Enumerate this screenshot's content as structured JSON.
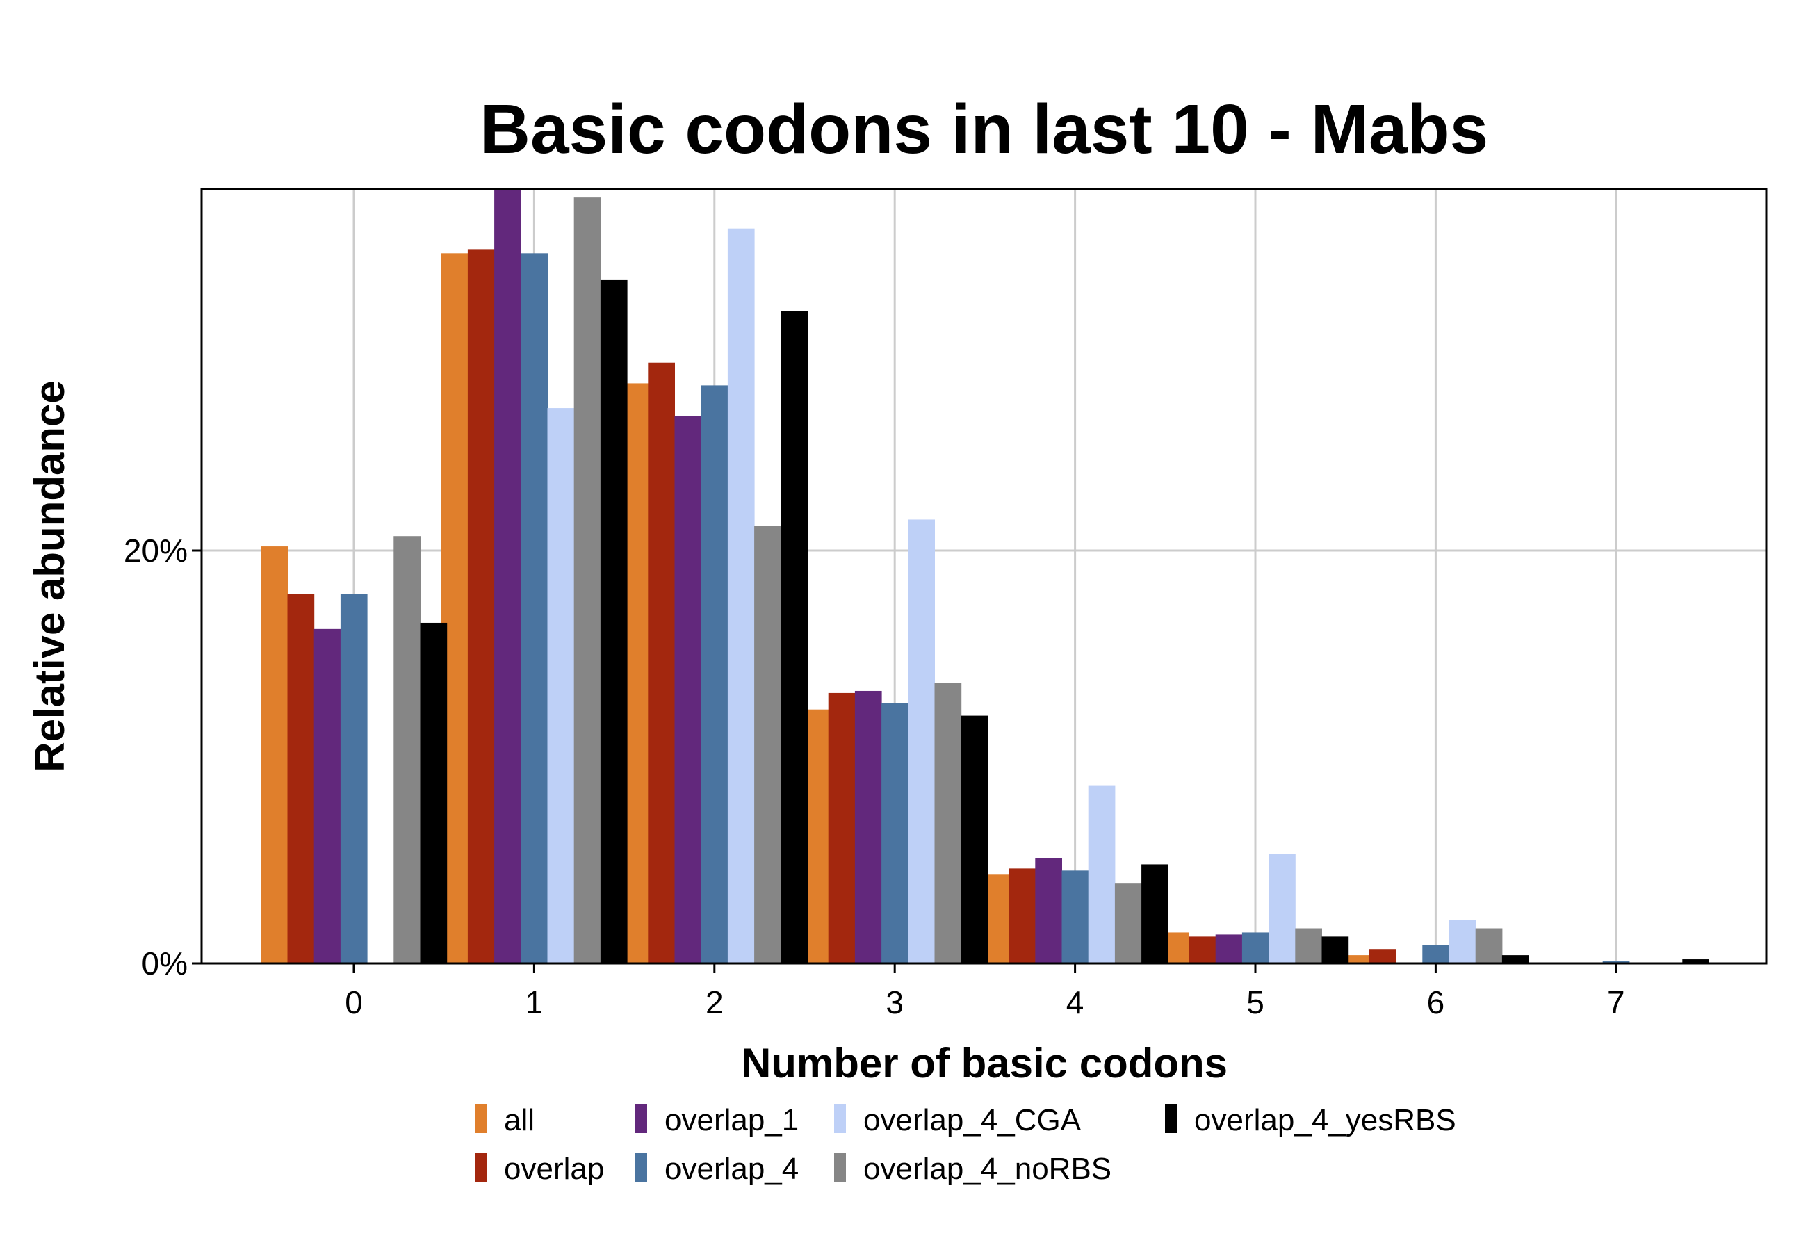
{
  "chart_data": {
    "type": "bar",
    "title": "Basic codons in last 10 - Mabs",
    "xlabel": "Number of basic codons",
    "ylabel": "Relative abundance",
    "categories": [
      "0",
      "1",
      "2",
      "3",
      "4",
      "5",
      "6",
      "7"
    ],
    "y_ticks": [
      {
        "value": 0,
        "label": "0%"
      },
      {
        "value": 20,
        "label": "20%"
      }
    ],
    "ylim": [
      0,
      37.6
    ],
    "grid": true,
    "legend_position": "bottom",
    "series": [
      {
        "name": "all",
        "color": "#E07F2C",
        "values": [
          20.2,
          34.4,
          28.1,
          12.3,
          4.3,
          1.5,
          0.4,
          0.0
        ]
      },
      {
        "name": "overlap",
        "color": "#A3270E",
        "values": [
          17.9,
          34.6,
          29.1,
          13.1,
          4.6,
          1.3,
          0.7,
          0.0
        ]
      },
      {
        "name": "overlap_1",
        "color": "#62287C",
        "values": [
          16.2,
          37.6,
          26.5,
          13.2,
          5.1,
          1.4,
          0.0,
          0.0
        ]
      },
      {
        "name": "overlap_4",
        "color": "#4A74A0",
        "values": [
          17.9,
          34.4,
          28.0,
          12.6,
          4.5,
          1.5,
          0.9,
          0.1
        ]
      },
      {
        "name": "overlap_4_CGA",
        "color": "#BED0F7",
        "values": [
          0,
          26.9,
          35.6,
          21.5,
          8.6,
          5.3,
          2.1,
          0.0
        ]
      },
      {
        "name": "overlap_4_noRBS",
        "color": "#868686",
        "values": [
          20.7,
          37.1,
          21.2,
          13.6,
          3.9,
          1.7,
          1.7,
          0.0
        ]
      },
      {
        "name": "overlap_4_yesRBS",
        "color": "#000000",
        "values": [
          16.5,
          33.1,
          31.6,
          12.0,
          4.8,
          1.3,
          0.4,
          0.2
        ]
      }
    ]
  }
}
